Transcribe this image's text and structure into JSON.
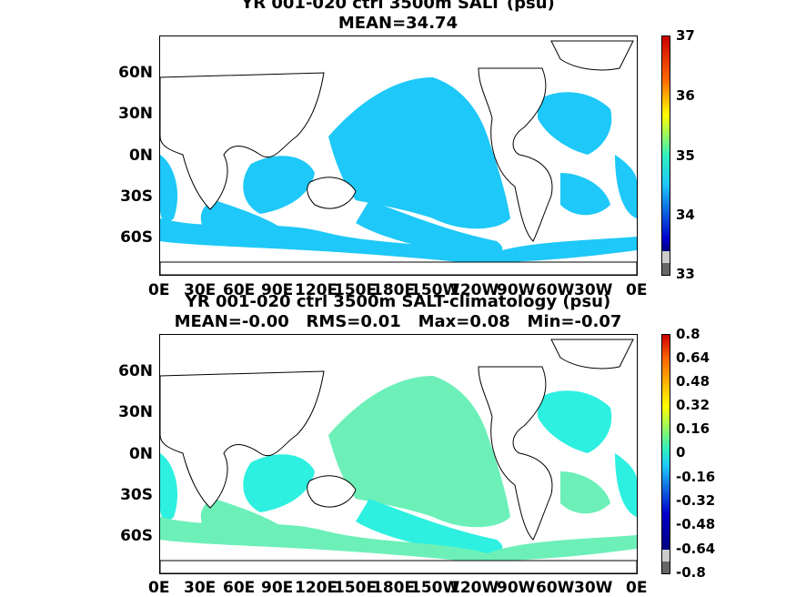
{
  "panel1": {
    "title_line1": "YR 001-020 ctrl 3500m SALT (psu)",
    "title_line2": "MEAN=34.74",
    "colorbar_ticks": [
      "37",
      "36",
      "35",
      "34",
      "33"
    ]
  },
  "panel2": {
    "title_line1": "YR 001-020 ctrl 3500m SALT-climatology (psu)",
    "title_line2": "MEAN=-0.00   RMS=0.01   Max=0.08   Min=-0.07",
    "colorbar_ticks": [
      "0.8",
      "0.64",
      "0.48",
      "0.32",
      "0.16",
      "0",
      "-0.16",
      "-0.32",
      "-0.48",
      "-0.64",
      "-0.8"
    ]
  },
  "lat_labels": [
    "60N",
    "30N",
    "0N",
    "30S",
    "60S"
  ],
  "lon_labels": [
    "0E",
    "30E",
    "60E",
    "90E",
    "120E",
    "150E",
    "180E",
    "150W",
    "120W",
    "90W",
    "60W",
    "30W",
    "0E"
  ],
  "colors": {
    "ocean_panel1": "#1ec8f8",
    "ocean_panel2_a": "#2ef0e0",
    "ocean_panel2_b": "#6cf0b8",
    "land": "#ffffff"
  }
}
